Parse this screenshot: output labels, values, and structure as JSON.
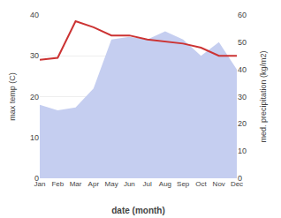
{
  "chart_data": {
    "type": "line",
    "categories": [
      "Jan",
      "Feb",
      "Mar",
      "Apr",
      "May",
      "Jun",
      "Jul",
      "Aug",
      "Sep",
      "Oct",
      "Nov",
      "Dec"
    ],
    "xlabel": "date (month)",
    "ylabel": "max temp (C)",
    "y2label": "med. precipitation (kg/m2)",
    "ylim": [
      0,
      40
    ],
    "yticks": [
      0,
      10,
      20,
      30,
      40
    ],
    "y2lim": [
      0,
      60
    ],
    "y2ticks": [
      0,
      10,
      20,
      30,
      40,
      50,
      60
    ],
    "grid": true,
    "series": [
      {
        "type": "area",
        "axis": "y2",
        "color": "#c5cef0",
        "values": [
          27,
          25,
          26,
          33,
          51,
          52,
          51,
          54,
          51,
          45,
          50,
          40
        ]
      },
      {
        "type": "line",
        "color": "#cc3333",
        "values": [
          29,
          29.5,
          38.5,
          37,
          35,
          35,
          34,
          33.5,
          33,
          32,
          30,
          30
        ]
      }
    ]
  }
}
